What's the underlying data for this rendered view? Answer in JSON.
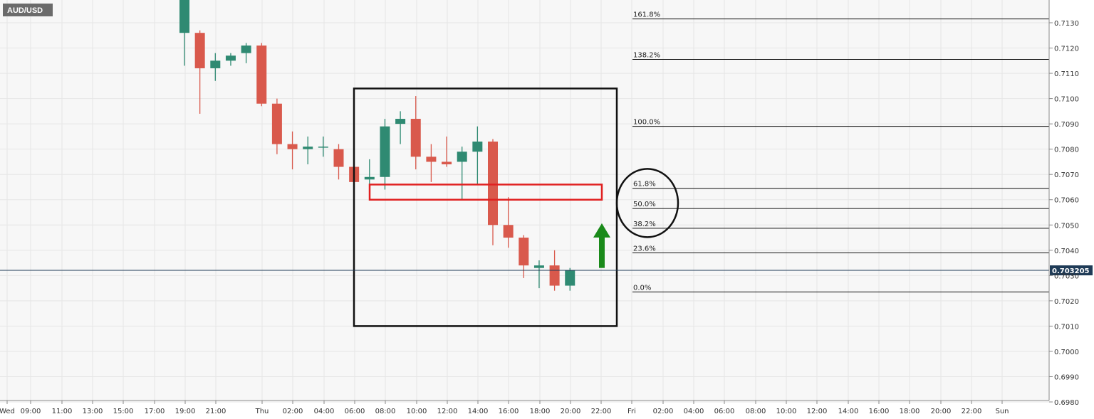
{
  "symbol": "AUD/USD",
  "current_price": "0.703205",
  "colors": {
    "bull": "#2f8a72",
    "bear": "#d9594c",
    "grid": "#e6e6e6",
    "plot_bg": "#f7f7f7",
    "price_line": "#1f3b57",
    "price_badge": "#1f3b57",
    "symbol_badge": "#6b6b6b",
    "arrow": "#1a8a1a",
    "zone": "#e02020",
    "box": "#111111"
  },
  "chart_data": {
    "type": "candlestick",
    "title": "",
    "symbol": "AUD/USD",
    "x_labels": [
      "Wed",
      "09:00",
      "11:00",
      "13:00",
      "15:00",
      "17:00",
      "19:00",
      "21:00",
      "Thu",
      "02:00",
      "04:00",
      "06:00",
      "08:00",
      "10:00",
      "12:00",
      "14:00",
      "16:00",
      "18:00",
      "20:00",
      "22:00",
      "Fri",
      "02:00",
      "04:00",
      "06:00",
      "08:00",
      "10:00",
      "12:00",
      "14:00",
      "16:00",
      "18:00",
      "20:00",
      "22:00",
      "Sun"
    ],
    "y_ticks": [
      "0.7130",
      "0.7120",
      "0.7110",
      "0.7100",
      "0.7090",
      "0.7080",
      "0.7070",
      "0.7060",
      "0.7050",
      "0.7040",
      "0.7030",
      "0.7020",
      "0.7010",
      "0.7000",
      "0.6990",
      "0.6980"
    ],
    "ylim": [
      0.698,
      0.7135
    ],
    "current_price": 0.703205,
    "candles": [
      {
        "open": 0.7126,
        "high": 0.714,
        "low": 0.7113,
        "close": 0.714
      },
      {
        "open": 0.7126,
        "high": 0.7127,
        "low": 0.7094,
        "close": 0.7112
      },
      {
        "open": 0.7112,
        "high": 0.7118,
        "low": 0.7107,
        "close": 0.7115
      },
      {
        "open": 0.7115,
        "high": 0.7118,
        "low": 0.7113,
        "close": 0.7117
      },
      {
        "open": 0.7118,
        "high": 0.7122,
        "low": 0.7114,
        "close": 0.7121
      },
      {
        "open": 0.7121,
        "high": 0.7122,
        "low": 0.7097,
        "close": 0.7098
      },
      {
        "open": 0.7098,
        "high": 0.71,
        "low": 0.7078,
        "close": 0.7082
      },
      {
        "open": 0.7082,
        "high": 0.7087,
        "low": 0.7072,
        "close": 0.708
      },
      {
        "open": 0.708,
        "high": 0.7085,
        "low": 0.7074,
        "close": 0.7081
      },
      {
        "open": 0.7081,
        "high": 0.7085,
        "low": 0.7077,
        "close": 0.7081
      },
      {
        "open": 0.708,
        "high": 0.7082,
        "low": 0.7068,
        "close": 0.7073
      },
      {
        "open": 0.7073,
        "high": 0.7073,
        "low": 0.7066,
        "close": 0.7067
      },
      {
        "open": 0.7068,
        "high": 0.7076,
        "low": 0.7065,
        "close": 0.7069
      },
      {
        "open": 0.7069,
        "high": 0.7092,
        "low": 0.7064,
        "close": 0.7089
      },
      {
        "open": 0.709,
        "high": 0.7095,
        "low": 0.7082,
        "close": 0.7092
      },
      {
        "open": 0.7092,
        "high": 0.7101,
        "low": 0.7072,
        "close": 0.7077
      },
      {
        "open": 0.7077,
        "high": 0.7082,
        "low": 0.7067,
        "close": 0.7075
      },
      {
        "open": 0.7075,
        "high": 0.7085,
        "low": 0.7073,
        "close": 0.7074
      },
      {
        "open": 0.7075,
        "high": 0.7081,
        "low": 0.706,
        "close": 0.7079
      },
      {
        "open": 0.7079,
        "high": 0.7089,
        "low": 0.7066,
        "close": 0.7083
      },
      {
        "open": 0.7083,
        "high": 0.7084,
        "low": 0.7042,
        "close": 0.705
      },
      {
        "open": 0.705,
        "high": 0.7061,
        "low": 0.7041,
        "close": 0.7045
      },
      {
        "open": 0.7045,
        "high": 0.7046,
        "low": 0.7029,
        "close": 0.7034
      },
      {
        "open": 0.7033,
        "high": 0.7036,
        "low": 0.7025,
        "close": 0.7034
      },
      {
        "open": 0.7034,
        "high": 0.704,
        "low": 0.7024,
        "close": 0.7026
      },
      {
        "open": 0.7026,
        "high": 0.7033,
        "low": 0.7024,
        "close": 0.7032
      }
    ],
    "fib_levels": [
      {
        "label": "161.8%",
        "price": 0.71315
      },
      {
        "label": "138.2%",
        "price": 0.71155
      },
      {
        "label": "100.0%",
        "price": 0.7089
      },
      {
        "label": "61.8%",
        "price": 0.70645
      },
      {
        "label": "50.0%",
        "price": 0.70565
      },
      {
        "label": "38.2%",
        "price": 0.70487
      },
      {
        "label": "23.6%",
        "price": 0.7039
      },
      {
        "label": "0.0%",
        "price": 0.70235
      }
    ],
    "annotations": {
      "box": {
        "x_from": "05:30 Thu",
        "x_to": "22:30 Thu",
        "y_from": 0.701,
        "y_to": 0.7104
      },
      "zone": {
        "x_from": "07:00 Thu",
        "x_to": "22:00 Thu",
        "y_from": 0.706,
        "y_to": 0.7066
      },
      "circle": {
        "center_x": "01:00 Fri",
        "center_y": 0.70587
      },
      "arrow": {
        "direction": "up",
        "x": "22:00 Thu",
        "y_from": 0.7033,
        "y_to": 0.7049
      }
    }
  }
}
